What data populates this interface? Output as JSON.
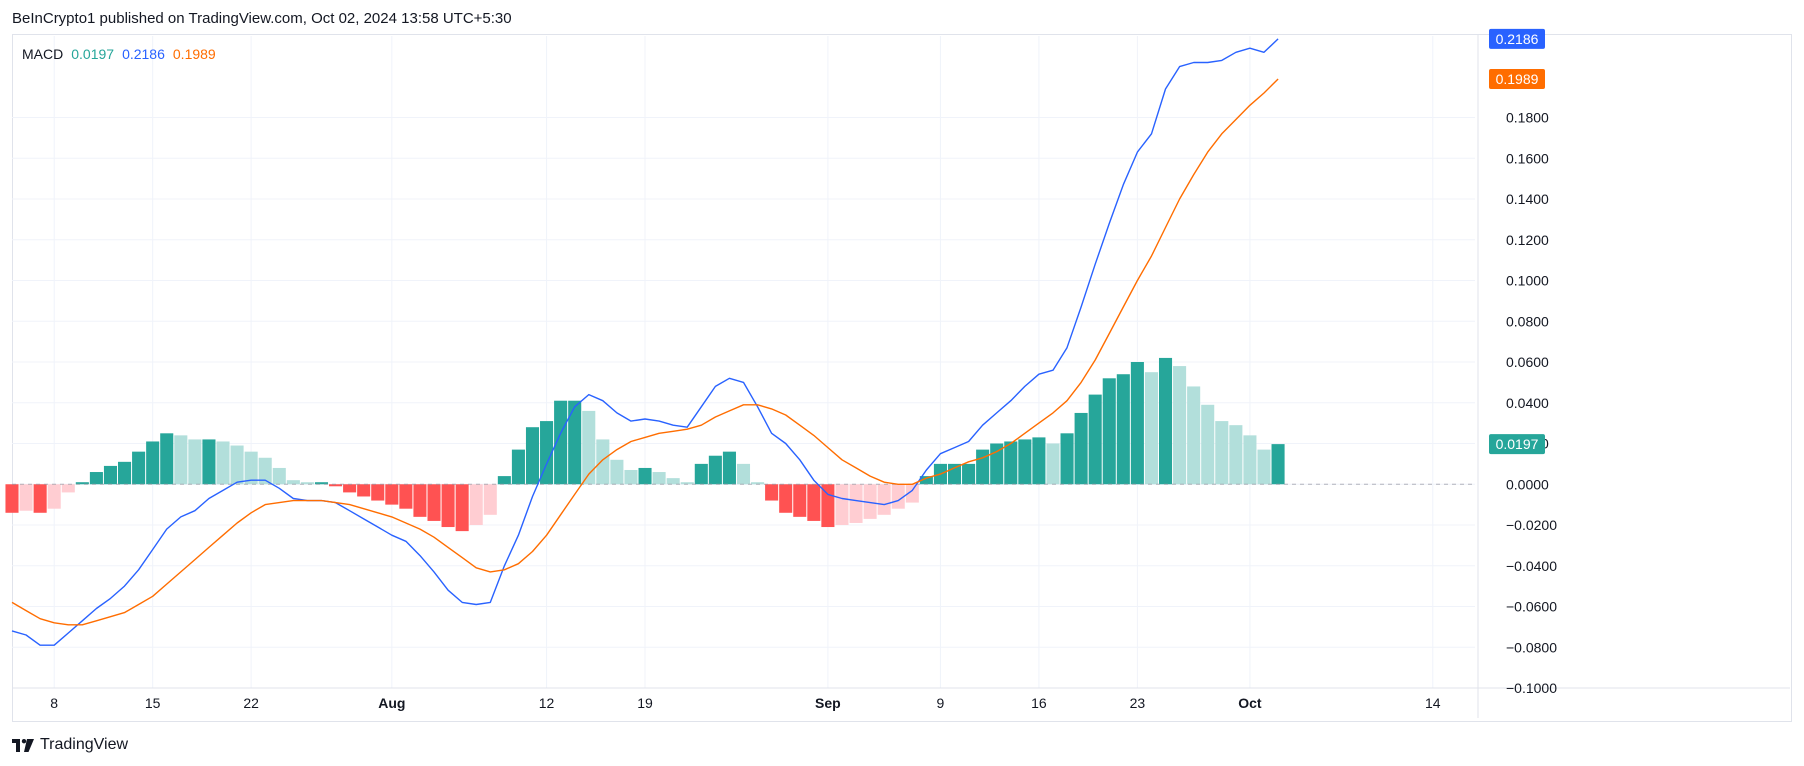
{
  "header": {
    "publish_line": "BeInCrypto1 published on TradingView.com, Oct 02, 2024 13:58 UTC+5:30"
  },
  "legend": {
    "name": "MACD",
    "histogram_value": "0.0197",
    "macd_value": "0.2186",
    "signal_value": "0.1989"
  },
  "footer": {
    "brand": "TradingView"
  },
  "colors": {
    "macd_line": "#2962ff",
    "signal_line": "#ff6d00",
    "hist_pos_strong": "#26a69a",
    "hist_pos_weak": "#b2dfdb",
    "hist_neg_strong": "#ff5252",
    "hist_neg_weak": "#ffcdd2",
    "grid": "#f0f3fa",
    "axis_text": "#131722"
  },
  "chart_data": {
    "type": "line",
    "title": "MACD",
    "xlabel": "",
    "ylabel": "",
    "ylim": [
      -0.1,
      0.22
    ],
    "y_ticks": [
      -0.1,
      -0.08,
      -0.06,
      -0.04,
      -0.02,
      0.0,
      0.02,
      0.04,
      0.06,
      0.08,
      0.1,
      0.12,
      0.14,
      0.16,
      0.18
    ],
    "y_tick_labels": [
      "−0.1000",
      "−0.0800",
      "−0.0600",
      "−0.0400",
      "−0.0200",
      "0.0000",
      "0.0200",
      "0.0400",
      "0.0600",
      "0.0800",
      "0.1000",
      "0.1200",
      "0.1400",
      "0.1600",
      "0.1800"
    ],
    "x_index_range": [
      0,
      104
    ],
    "x_ticks": [
      {
        "index": 3,
        "label": "8",
        "bold": false
      },
      {
        "index": 10,
        "label": "15",
        "bold": false
      },
      {
        "index": 17,
        "label": "22",
        "bold": false
      },
      {
        "index": 27,
        "label": "Aug",
        "bold": true
      },
      {
        "index": 38,
        "label": "12",
        "bold": false
      },
      {
        "index": 45,
        "label": "19",
        "bold": false
      },
      {
        "index": 58,
        "label": "Sep",
        "bold": true
      },
      {
        "index": 66,
        "label": "9",
        "bold": false
      },
      {
        "index": 73,
        "label": "16",
        "bold": false
      },
      {
        "index": 80,
        "label": "23",
        "bold": false
      },
      {
        "index": 88,
        "label": "Oct",
        "bold": true
      },
      {
        "index": 101,
        "label": "14",
        "bold": false
      }
    ],
    "price_labels": [
      {
        "series": "MACD",
        "value": 0.2186,
        "text": "0.2186",
        "color": "#2962ff"
      },
      {
        "series": "Signal",
        "value": 0.1989,
        "text": "0.1989",
        "color": "#ff6d00"
      },
      {
        "series": "Histogram",
        "value": 0.0197,
        "text": "0.0197",
        "color": "#26a69a"
      }
    ],
    "histogram": [
      -0.014,
      -0.013,
      -0.014,
      -0.012,
      -0.004,
      0.001,
      0.006,
      0.009,
      0.011,
      0.016,
      0.021,
      0.025,
      0.024,
      0.022,
      0.022,
      0.021,
      0.019,
      0.016,
      0.013,
      0.008,
      0.002,
      0.001,
      0.001,
      -0.001,
      -0.004,
      -0.006,
      -0.008,
      -0.01,
      -0.012,
      -0.016,
      -0.018,
      -0.021,
      -0.023,
      -0.02,
      -0.015,
      0.004,
      0.017,
      0.028,
      0.031,
      0.041,
      0.041,
      0.036,
      0.022,
      0.012,
      0.007,
      0.008,
      0.006,
      0.003,
      0.001,
      0.01,
      0.014,
      0.016,
      0.01,
      0.001,
      -0.008,
      -0.014,
      -0.016,
      -0.018,
      -0.021,
      -0.02,
      -0.019,
      -0.017,
      -0.015,
      -0.012,
      -0.009,
      0.004,
      0.01,
      0.01,
      0.01,
      0.017,
      0.02,
      0.021,
      0.022,
      0.023,
      0.02,
      0.025,
      0.035,
      0.044,
      0.052,
      0.054,
      0.06,
      0.055,
      0.062,
      0.058,
      0.048,
      0.039,
      0.031,
      0.029,
      0.024,
      0.017,
      0.0197
    ],
    "series": [
      {
        "name": "MACD",
        "color": "#2962ff",
        "values": [
          -0.072,
          -0.074,
          -0.079,
          -0.079,
          -0.073,
          -0.067,
          -0.061,
          -0.056,
          -0.05,
          -0.042,
          -0.032,
          -0.022,
          -0.016,
          -0.013,
          -0.007,
          -0.003,
          0.001,
          0.002,
          0.002,
          -0.002,
          -0.007,
          -0.008,
          -0.008,
          -0.009,
          -0.013,
          -0.017,
          -0.021,
          -0.025,
          -0.028,
          -0.035,
          -0.043,
          -0.052,
          -0.058,
          -0.059,
          -0.058,
          -0.04,
          -0.025,
          -0.006,
          0.01,
          0.025,
          0.038,
          0.044,
          0.041,
          0.035,
          0.031,
          0.032,
          0.031,
          0.029,
          0.028,
          0.038,
          0.048,
          0.052,
          0.05,
          0.038,
          0.025,
          0.02,
          0.012,
          0.002,
          -0.005,
          -0.007,
          -0.008,
          -0.009,
          -0.01,
          -0.008,
          -0.003,
          0.007,
          0.015,
          0.018,
          0.021,
          0.029,
          0.035,
          0.041,
          0.048,
          0.054,
          0.056,
          0.067,
          0.087,
          0.108,
          0.128,
          0.147,
          0.163,
          0.172,
          0.194,
          0.205,
          0.207,
          0.207,
          0.208,
          0.212,
          0.214,
          0.212,
          0.2186
        ]
      },
      {
        "name": "Signal",
        "color": "#ff6d00",
        "values": [
          -0.058,
          -0.062,
          -0.066,
          -0.068,
          -0.069,
          -0.069,
          -0.067,
          -0.065,
          -0.063,
          -0.059,
          -0.055,
          -0.049,
          -0.043,
          -0.037,
          -0.031,
          -0.025,
          -0.019,
          -0.014,
          -0.01,
          -0.009,
          -0.008,
          -0.008,
          -0.008,
          -0.009,
          -0.01,
          -0.012,
          -0.014,
          -0.016,
          -0.019,
          -0.022,
          -0.026,
          -0.031,
          -0.036,
          -0.041,
          -0.043,
          -0.042,
          -0.039,
          -0.033,
          -0.025,
          -0.015,
          -0.005,
          0.005,
          0.012,
          0.017,
          0.021,
          0.023,
          0.025,
          0.026,
          0.027,
          0.029,
          0.033,
          0.036,
          0.039,
          0.039,
          0.037,
          0.034,
          0.029,
          0.024,
          0.018,
          0.012,
          0.008,
          0.004,
          0.001,
          0.0,
          0.0,
          0.003,
          0.005,
          0.008,
          0.011,
          0.013,
          0.016,
          0.02,
          0.025,
          0.03,
          0.035,
          0.041,
          0.05,
          0.061,
          0.074,
          0.087,
          0.1,
          0.112,
          0.126,
          0.14,
          0.152,
          0.163,
          0.172,
          0.179,
          0.186,
          0.192,
          0.1989
        ]
      }
    ]
  }
}
